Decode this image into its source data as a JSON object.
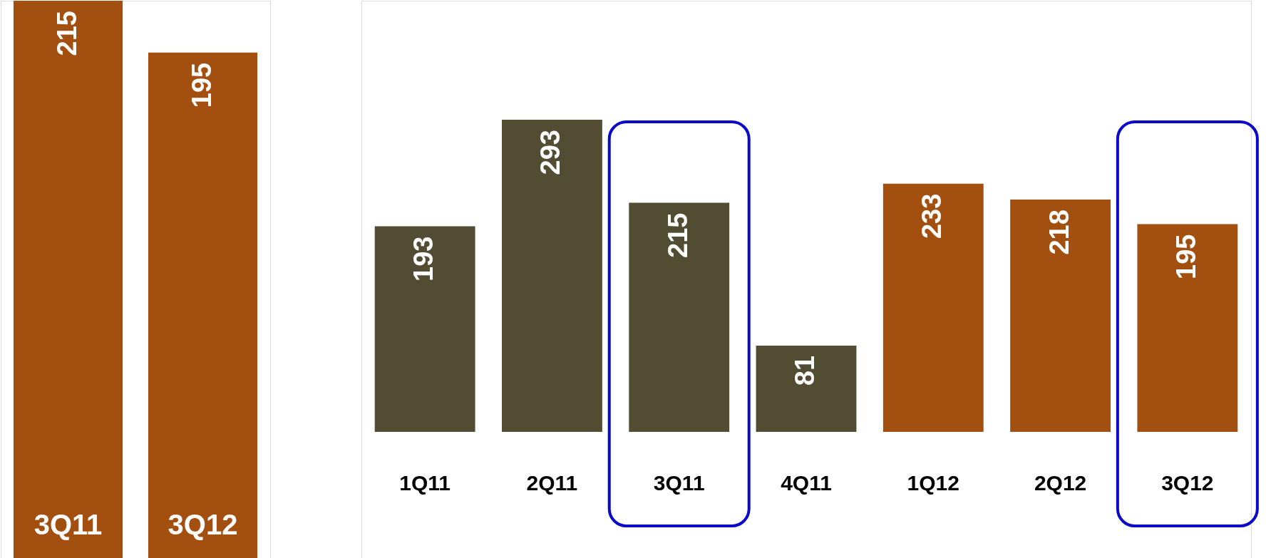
{
  "chart_data": [
    {
      "type": "bar",
      "categories": [
        "3Q11",
        "3Q12"
      ],
      "values": [
        215,
        195
      ],
      "colors": [
        "#a34f0f",
        "#a34f0f"
      ],
      "data_labels": true
    },
    {
      "type": "bar",
      "categories": [
        "1Q11",
        "2Q11",
        "3Q11",
        "4Q11",
        "1Q12",
        "2Q12",
        "3Q12"
      ],
      "values": [
        193,
        293,
        215,
        81,
        233,
        218,
        195
      ],
      "colors": [
        "#524c33",
        "#524c33",
        "#524c33",
        "#524c33",
        "#a34f0f",
        "#a34f0f",
        "#a34f0f"
      ],
      "data_labels": true
    }
  ]
}
